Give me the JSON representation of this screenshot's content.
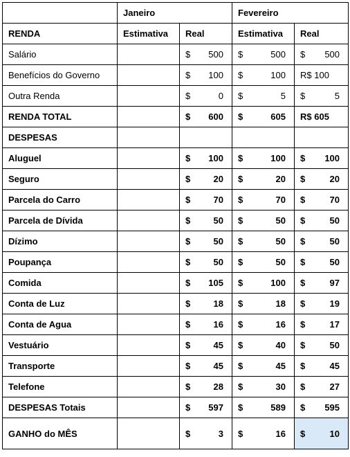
{
  "months": {
    "jan": "Janeiro",
    "feb": "Fevereiro"
  },
  "subheaders": {
    "renda": "RENDA",
    "estimativa": "Estimativa",
    "real": "Real"
  },
  "income": [
    {
      "label": "Salário",
      "jan_real": "500",
      "feb_est": "500",
      "feb_real": "500"
    },
    {
      "label": "Benefícios do Governo",
      "jan_real": "100",
      "feb_est": "100",
      "feb_real_text": "R$ 100"
    },
    {
      "label": "Outra Renda",
      "jan_real": "0",
      "feb_est": "5",
      "feb_real": "5"
    }
  ],
  "income_total": {
    "label": "RENDA TOTAL",
    "jan_real": "600",
    "feb_est": "605",
    "feb_real_text": "R$ 605"
  },
  "expenses_header": "DESPESAS",
  "expenses": [
    {
      "label": "Aluguel",
      "jan_real": "100",
      "feb_est": "100",
      "feb_real": "100"
    },
    {
      "label": "Seguro",
      "jan_real": "20",
      "feb_est": "20",
      "feb_real": "20"
    },
    {
      "label": "Parcela do Carro",
      "jan_real": "70",
      "feb_est": "70",
      "feb_real": "70"
    },
    {
      "label": "Parcela de Dívida",
      "jan_real": "50",
      "feb_est": "50",
      "feb_real": "50"
    },
    {
      "label": "Dízimo",
      "jan_real": "50",
      "feb_est": "50",
      "feb_real": "50"
    },
    {
      "label": "Poupança",
      "jan_real": "50",
      "feb_est": "50",
      "feb_real": "50"
    },
    {
      "label": "Comida",
      "jan_real": "105",
      "feb_est": "100",
      "feb_real": "97"
    },
    {
      "label": "Conta de Luz",
      "jan_real": "18",
      "feb_est": "18",
      "feb_real": "19"
    },
    {
      "label": "Conta de Agua",
      "jan_real": "16",
      "feb_est": "16",
      "feb_real": "17"
    },
    {
      "label": "Vestuário",
      "jan_real": "45",
      "feb_est": "40",
      "feb_real": "50"
    },
    {
      "label": "Transporte",
      "jan_real": "45",
      "feb_est": "45",
      "feb_real": "45"
    },
    {
      "label": "Telefone",
      "jan_real": "28",
      "feb_est": "30",
      "feb_real": "27"
    }
  ],
  "expenses_total": {
    "label": "DESPESAS Totais",
    "jan_real": "597",
    "feb_est": "589",
    "feb_real": "595"
  },
  "gain": {
    "label": "GANHO do MÊS",
    "jan_real": "3",
    "feb_est": "16",
    "feb_real": "10"
  },
  "currency": "$",
  "colors": {
    "highlight": "#d9e9f7"
  }
}
